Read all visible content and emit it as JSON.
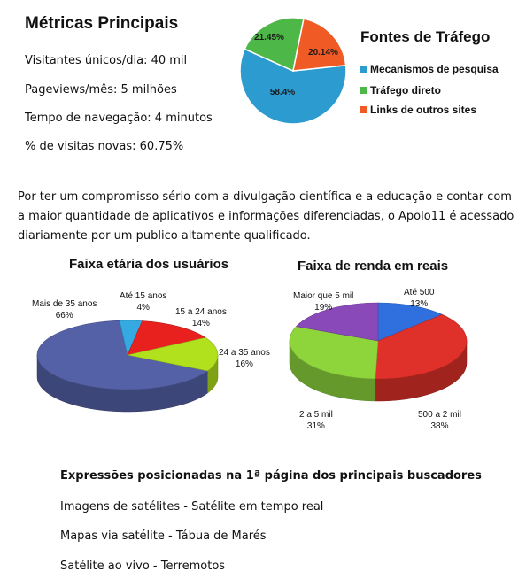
{
  "metrics": {
    "title": "Métricas Principais",
    "items": [
      "Visitantes únicos/dia:  40 mil",
      "Pageviews/mês:  5 milhões",
      "Tempo de navegação: 4 minutos",
      "% de visitas novas: 60.75%"
    ]
  },
  "intro": "Por ter um compromisso sério com a divulgação científica e a educação e contar com a maior quantidade de aplicativos e informações diferenciadas, o Apolo11 é acessado diariamente por um publico altamente qualificado.",
  "keywords": {
    "title": "Expressões posicionadas na 1ª página dos principais buscadores",
    "items": [
      "Imagens de satélites - Satélite em tempo real",
      "Mapas via satélite - Tábua de Marés",
      "Satélite ao vivo - Terremotos"
    ]
  },
  "chart_data": [
    {
      "type": "pie",
      "title": "Fontes de Tráfego",
      "categories": [
        "Mecanismos de pesquisa",
        "Tráfego direto",
        "Links de outros sites"
      ],
      "values": [
        58.4,
        21.45,
        20.14
      ],
      "value_labels": [
        "58.4%",
        "21.45%",
        "20.14%"
      ],
      "colors": [
        "#2b9bd0",
        "#4db848",
        "#f05a24"
      ],
      "legend": "right"
    },
    {
      "type": "pie",
      "title": "Faixa etária dos usuários",
      "categories": [
        "Mais de 35 anos",
        "Até 15 anos",
        "15 a 24 anos",
        "24 a 35 anos"
      ],
      "values": [
        66,
        4,
        14,
        16
      ],
      "value_labels": [
        "66%",
        "4%",
        "14%",
        "16%"
      ],
      "colors": [
        "#5561a7",
        "#35a9e2",
        "#e8211e",
        "#b1e01c"
      ],
      "style": "3d"
    },
    {
      "type": "pie",
      "title": "Faixa de renda em reais",
      "categories": [
        "Até  500",
        "500 a 2 mil",
        "2 a 5 mil",
        "Maior que 5 mil"
      ],
      "values": [
        13,
        38,
        31,
        19
      ],
      "value_labels": [
        "13%",
        "38%",
        "31%",
        "19%"
      ],
      "colors": [
        "#2f6fde",
        "#e0302a",
        "#8ed53c",
        "#8a49b8"
      ],
      "style": "3d"
    }
  ]
}
